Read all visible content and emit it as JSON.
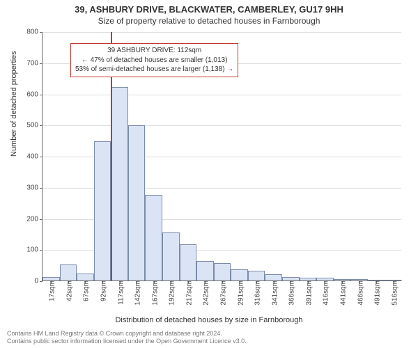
{
  "title": "39, ASHBURY DRIVE, BLACKWATER, CAMBERLEY, GU17 9HH",
  "subtitle": "Size of property relative to detached houses in Farnborough",
  "ylabel": "Number of detached properties",
  "xlabel": "Distribution of detached houses by size in Farnborough",
  "footer_line1": "Contains HM Land Registry data © Crown copyright and database right 2024.",
  "footer_line2": "Contains public sector information licensed under the Open Government Licence v3.0.",
  "chart": {
    "type": "histogram",
    "background_color": "#ffffff",
    "grid_color": "#dedede",
    "axis_color": "#666666",
    "bar_fill": "#dbe4f5",
    "bar_border": "#7a8aa8",
    "ymin": 0,
    "ymax": 800,
    "ytick_step": 100,
    "yticks": [
      0,
      100,
      200,
      300,
      400,
      500,
      600,
      700,
      800
    ],
    "x_labels": [
      "17sqm",
      "42sqm",
      "67sqm",
      "92sqm",
      "117sqm",
      "142sqm",
      "167sqm",
      "192sqm",
      "217sqm",
      "242sqm",
      "267sqm",
      "291sqm",
      "316sqm",
      "341sqm",
      "366sqm",
      "391sqm",
      "416sqm",
      "441sqm",
      "466sqm",
      "491sqm",
      "516sqm"
    ],
    "values": [
      12,
      52,
      22,
      448,
      622,
      498,
      276,
      155,
      116,
      62,
      55,
      35,
      32,
      20,
      12,
      10,
      8,
      5,
      4,
      3,
      2
    ],
    "tick_fontsize": 10,
    "label_fontsize": 11,
    "title_fontsize": 13
  },
  "marker": {
    "property_sqm": 112,
    "x_min_sqm": 17,
    "x_max_sqm": 516,
    "line_color": "#c0392b",
    "box_border": "#c0392b",
    "line1": "39 ASHBURY DRIVE: 112sqm",
    "line2": "← 47% of detached houses are smaller (1,013)",
    "line3": "53% of semi-detached houses are larger (1,138) →"
  }
}
